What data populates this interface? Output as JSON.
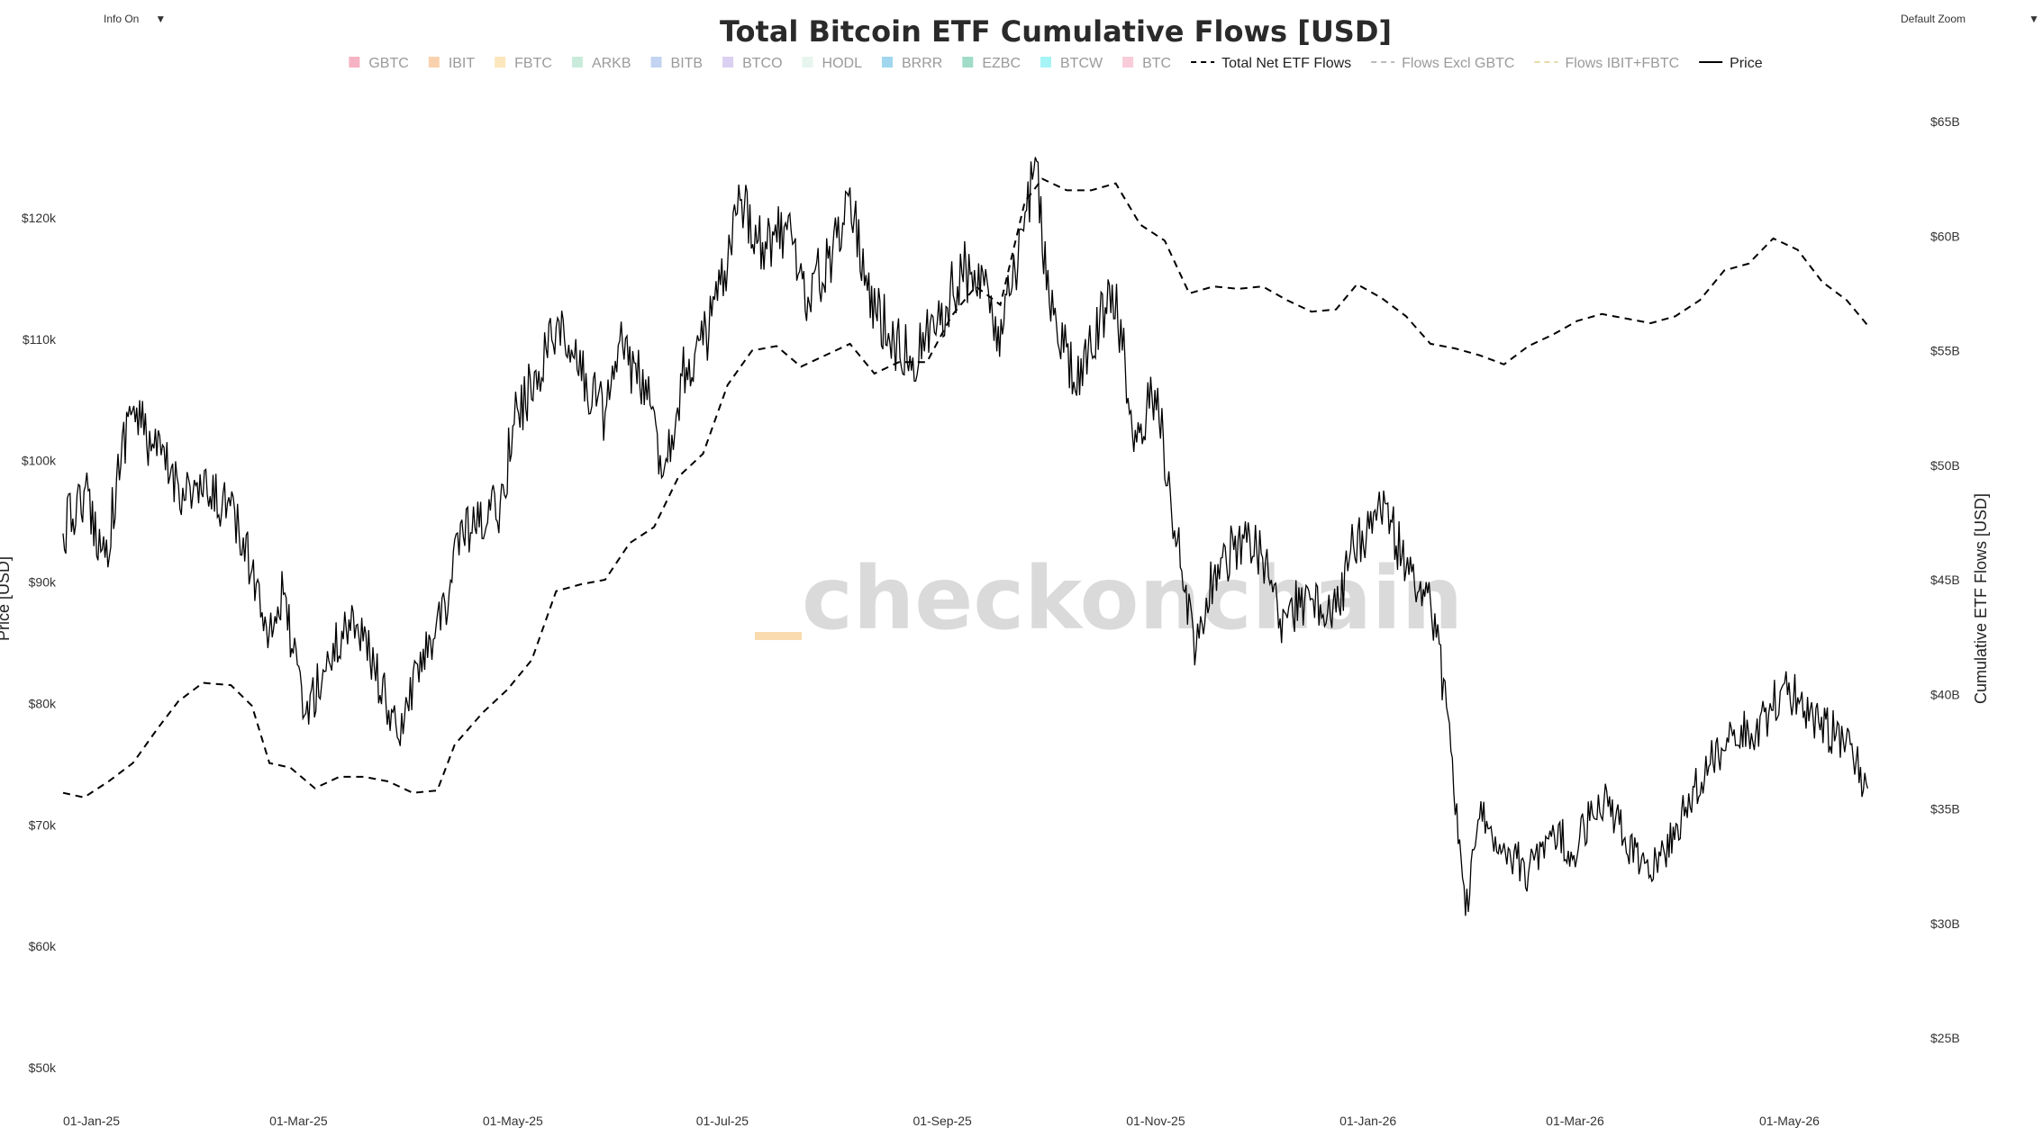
{
  "controls": {
    "info_label": "Info On",
    "zoom_label": "Default Zoom",
    "dropdown_glyph": "▼"
  },
  "watermark": {
    "text": "checkonchain",
    "accent_color": "#f7c27a"
  },
  "chart_data": {
    "type": "line",
    "title": "Total Bitcoin ETF Cumulative Flows [USD]",
    "ylabel_left": "Price [USD]",
    "ylabel_right": "Cumulative ETF Flows [USD]",
    "x_range": [
      "2025-01-01",
      "2026-06-04"
    ],
    "x_ticks": [
      "01-Jan-25",
      "01-Mar-25",
      "01-May-25",
      "01-Jul-25",
      "01-Sep-25",
      "01-Nov-25",
      "01-Jan-26",
      "01-Mar-26",
      "01-May-26"
    ],
    "x_tick_dates": [
      "2025-01-01",
      "2025-03-01",
      "2025-05-01",
      "2025-07-01",
      "2025-09-01",
      "2025-11-01",
      "2026-01-01",
      "2026-03-01",
      "2026-05-01"
    ],
    "y_left": {
      "min": 50000,
      "max": 120000,
      "ticks": [
        50000,
        60000,
        70000,
        80000,
        90000,
        100000,
        110000,
        120000
      ],
      "tick_labels": [
        "$50k",
        "$60k",
        "$70k",
        "$80k",
        "$90k",
        "$100k",
        "$110k",
        "$120k"
      ]
    },
    "y_right": {
      "min": 25,
      "max": 65,
      "unit": "B",
      "ticks": [
        25,
        30,
        35,
        40,
        45,
        50,
        55,
        60,
        65
      ],
      "tick_labels": [
        "$25B",
        "$30B",
        "$35B",
        "$40B",
        "$45B",
        "$50B",
        "$55B",
        "$60B",
        "$65B"
      ]
    },
    "grid": false,
    "legend_position": "top-center",
    "legend": [
      {
        "name": "GBTC",
        "kind": "box",
        "color": "#f4a6b8",
        "muted": true
      },
      {
        "name": "IBIT",
        "kind": "box",
        "color": "#f8c9a0",
        "muted": true
      },
      {
        "name": "FBTC",
        "kind": "box",
        "color": "#fbe3b0",
        "muted": true
      },
      {
        "name": "ARKB",
        "kind": "box",
        "color": "#bfe8d6",
        "muted": true
      },
      {
        "name": "BITB",
        "kind": "box",
        "color": "#b9ccf0",
        "muted": true
      },
      {
        "name": "BTCO",
        "kind": "box",
        "color": "#d3c8f0",
        "muted": true
      },
      {
        "name": "HODL",
        "kind": "box",
        "color": "#e2f3ea",
        "muted": true
      },
      {
        "name": "BRRR",
        "kind": "box",
        "color": "#8fd0ec",
        "muted": true
      },
      {
        "name": "EZBC",
        "kind": "box",
        "color": "#8fd6bd",
        "muted": true
      },
      {
        "name": "BTCW",
        "kind": "box",
        "color": "#98f2f5",
        "muted": true
      },
      {
        "name": "BTC",
        "kind": "box",
        "color": "#f8c3d3",
        "muted": true
      },
      {
        "name": "Total Net ETF Flows",
        "kind": "dash",
        "color": "#000000",
        "muted": false
      },
      {
        "name": "Flows Excl GBTC",
        "kind": "dash",
        "color": "#bbbbbb",
        "muted": true
      },
      {
        "name": "Flows IBIT+FBTC",
        "kind": "dash",
        "color": "#e6d9a8",
        "muted": true
      },
      {
        "name": "Price",
        "kind": "solid",
        "color": "#000000",
        "muted": false
      }
    ],
    "series": [
      {
        "name": "Price",
        "axis": "left",
        "style": "solid",
        "color": "#000000",
        "points": [
          [
            "2025-01-01",
            94000
          ],
          [
            "2025-01-07",
            97500
          ],
          [
            "2025-01-13",
            92000
          ],
          [
            "2025-01-20",
            104500
          ],
          [
            "2025-01-27",
            101000
          ],
          [
            "2025-02-03",
            98000
          ],
          [
            "2025-02-10",
            97000
          ],
          [
            "2025-02-17",
            96500
          ],
          [
            "2025-02-24",
            91000
          ],
          [
            "2025-03-01",
            86000
          ],
          [
            "2025-03-05",
            89000
          ],
          [
            "2025-03-11",
            79000
          ],
          [
            "2025-03-18",
            83500
          ],
          [
            "2025-03-25",
            87500
          ],
          [
            "2025-03-31",
            83000
          ],
          [
            "2025-04-07",
            77000
          ],
          [
            "2025-04-14",
            84500
          ],
          [
            "2025-04-21",
            87500
          ],
          [
            "2025-04-23",
            93500
          ],
          [
            "2025-04-30",
            94500
          ],
          [
            "2025-05-06",
            96500
          ],
          [
            "2025-05-10",
            103000
          ],
          [
            "2025-05-22",
            111000
          ],
          [
            "2025-05-28",
            107500
          ],
          [
            "2025-06-05",
            104000
          ],
          [
            "2025-06-10",
            109500
          ],
          [
            "2025-06-17",
            105000
          ],
          [
            "2025-06-22",
            99500
          ],
          [
            "2025-06-27",
            107000
          ],
          [
            "2025-07-03",
            109500
          ],
          [
            "2025-07-10",
            116000
          ],
          [
            "2025-07-14",
            121500
          ],
          [
            "2025-07-20",
            118000
          ],
          [
            "2025-07-27",
            119000
          ],
          [
            "2025-08-02",
            113500
          ],
          [
            "2025-08-09",
            117000
          ],
          [
            "2025-08-14",
            122500
          ],
          [
            "2025-08-19",
            114000
          ],
          [
            "2025-08-25",
            110500
          ],
          [
            "2025-09-01",
            108500
          ],
          [
            "2025-09-08",
            111500
          ],
          [
            "2025-09-15",
            115500
          ],
          [
            "2025-09-21",
            115500
          ],
          [
            "2025-09-25",
            109000
          ],
          [
            "2025-10-01",
            116000
          ],
          [
            "2025-10-06",
            125000
          ],
          [
            "2025-10-10",
            113000
          ],
          [
            "2025-10-17",
            106500
          ],
          [
            "2025-10-22",
            109000
          ],
          [
            "2025-10-28",
            114500
          ],
          [
            "2025-11-04",
            101500
          ],
          [
            "2025-11-10",
            106000
          ],
          [
            "2025-11-14",
            95500
          ],
          [
            "2025-11-21",
            84500
          ],
          [
            "2025-11-26",
            90500
          ],
          [
            "2025-12-03",
            93500
          ],
          [
            "2025-12-10",
            92000
          ],
          [
            "2025-12-15",
            87000
          ],
          [
            "2025-12-22",
            88500
          ],
          [
            "2025-12-31",
            87500
          ],
          [
            "2026-01-05",
            93000
          ],
          [
            "2026-01-14",
            96500
          ],
          [
            "2026-01-20",
            91000
          ],
          [
            "2026-01-27",
            88500
          ],
          [
            "2026-02-01",
            79000
          ],
          [
            "2026-02-06",
            62500
          ],
          [
            "2026-02-10",
            70500
          ],
          [
            "2026-02-17",
            68500
          ],
          [
            "2026-02-24",
            66000
          ],
          [
            "2026-03-03",
            70000
          ],
          [
            "2026-03-09",
            67500
          ],
          [
            "2026-03-16",
            72500
          ],
          [
            "2026-03-22",
            70000
          ],
          [
            "2026-03-28",
            66500
          ],
          [
            "2026-04-04",
            67500
          ],
          [
            "2026-04-10",
            71500
          ],
          [
            "2026-04-17",
            75000
          ],
          [
            "2026-04-23",
            78000
          ],
          [
            "2026-04-30",
            77500
          ],
          [
            "2026-05-07",
            81000
          ],
          [
            "2026-05-12",
            80500
          ],
          [
            "2026-05-18",
            78500
          ],
          [
            "2026-05-25",
            77000
          ],
          [
            "2026-06-01",
            73000
          ]
        ]
      },
      {
        "name": "Total Net ETF Flows",
        "axis": "right",
        "style": "dashed",
        "color": "#000000",
        "points": [
          [
            "2025-01-01",
            35.7
          ],
          [
            "2025-01-07",
            35.5
          ],
          [
            "2025-01-14",
            36.2
          ],
          [
            "2025-01-21",
            37.0
          ],
          [
            "2025-01-28",
            38.5
          ],
          [
            "2025-02-03",
            39.7
          ],
          [
            "2025-02-10",
            40.5
          ],
          [
            "2025-02-18",
            40.4
          ],
          [
            "2025-02-24",
            39.5
          ],
          [
            "2025-03-01",
            37.0
          ],
          [
            "2025-03-07",
            36.8
          ],
          [
            "2025-03-14",
            35.9
          ],
          [
            "2025-03-21",
            36.4
          ],
          [
            "2025-03-28",
            36.4
          ],
          [
            "2025-04-04",
            36.2
          ],
          [
            "2025-04-11",
            35.7
          ],
          [
            "2025-04-18",
            35.8
          ],
          [
            "2025-04-23",
            37.8
          ],
          [
            "2025-05-01",
            39.2
          ],
          [
            "2025-05-08",
            40.2
          ],
          [
            "2025-05-15",
            41.5
          ],
          [
            "2025-05-22",
            44.5
          ],
          [
            "2025-05-29",
            44.8
          ],
          [
            "2025-06-05",
            45.0
          ],
          [
            "2025-06-12",
            46.6
          ],
          [
            "2025-06-19",
            47.3
          ],
          [
            "2025-06-26",
            49.5
          ],
          [
            "2025-07-03",
            50.5
          ],
          [
            "2025-07-10",
            53.5
          ],
          [
            "2025-07-17",
            55.0
          ],
          [
            "2025-07-24",
            55.2
          ],
          [
            "2025-07-31",
            54.3
          ],
          [
            "2025-08-07",
            54.8
          ],
          [
            "2025-08-14",
            55.3
          ],
          [
            "2025-08-21",
            54.0
          ],
          [
            "2025-08-28",
            54.5
          ],
          [
            "2025-09-05",
            54.5
          ],
          [
            "2025-09-12",
            56.5
          ],
          [
            "2025-09-19",
            57.8
          ],
          [
            "2025-09-26",
            57.0
          ],
          [
            "2025-10-03",
            61.5
          ],
          [
            "2025-10-08",
            62.5
          ],
          [
            "2025-10-15",
            62.0
          ],
          [
            "2025-10-22",
            62.0
          ],
          [
            "2025-10-29",
            62.3
          ],
          [
            "2025-11-05",
            60.5
          ],
          [
            "2025-11-12",
            59.8
          ],
          [
            "2025-11-19",
            57.5
          ],
          [
            "2025-11-26",
            57.8
          ],
          [
            "2025-12-03",
            57.7
          ],
          [
            "2025-12-10",
            57.8
          ],
          [
            "2025-12-17",
            57.2
          ],
          [
            "2025-12-24",
            56.7
          ],
          [
            "2025-12-31",
            56.8
          ],
          [
            "2026-01-06",
            57.9
          ],
          [
            "2026-01-13",
            57.3
          ],
          [
            "2026-01-20",
            56.5
          ],
          [
            "2026-01-27",
            55.3
          ],
          [
            "2026-02-03",
            55.1
          ],
          [
            "2026-02-10",
            54.8
          ],
          [
            "2026-02-17",
            54.4
          ],
          [
            "2026-02-24",
            55.2
          ],
          [
            "2026-03-03",
            55.7
          ],
          [
            "2026-03-10",
            56.3
          ],
          [
            "2026-03-17",
            56.6
          ],
          [
            "2026-03-24",
            56.4
          ],
          [
            "2026-03-31",
            56.2
          ],
          [
            "2026-04-07",
            56.5
          ],
          [
            "2026-04-14",
            57.2
          ],
          [
            "2026-04-21",
            58.5
          ],
          [
            "2026-04-28",
            58.8
          ],
          [
            "2026-05-05",
            59.9
          ],
          [
            "2026-05-12",
            59.4
          ],
          [
            "2026-05-19",
            58.0
          ],
          [
            "2026-05-26",
            57.2
          ],
          [
            "2026-06-01",
            56.1
          ]
        ]
      }
    ]
  }
}
